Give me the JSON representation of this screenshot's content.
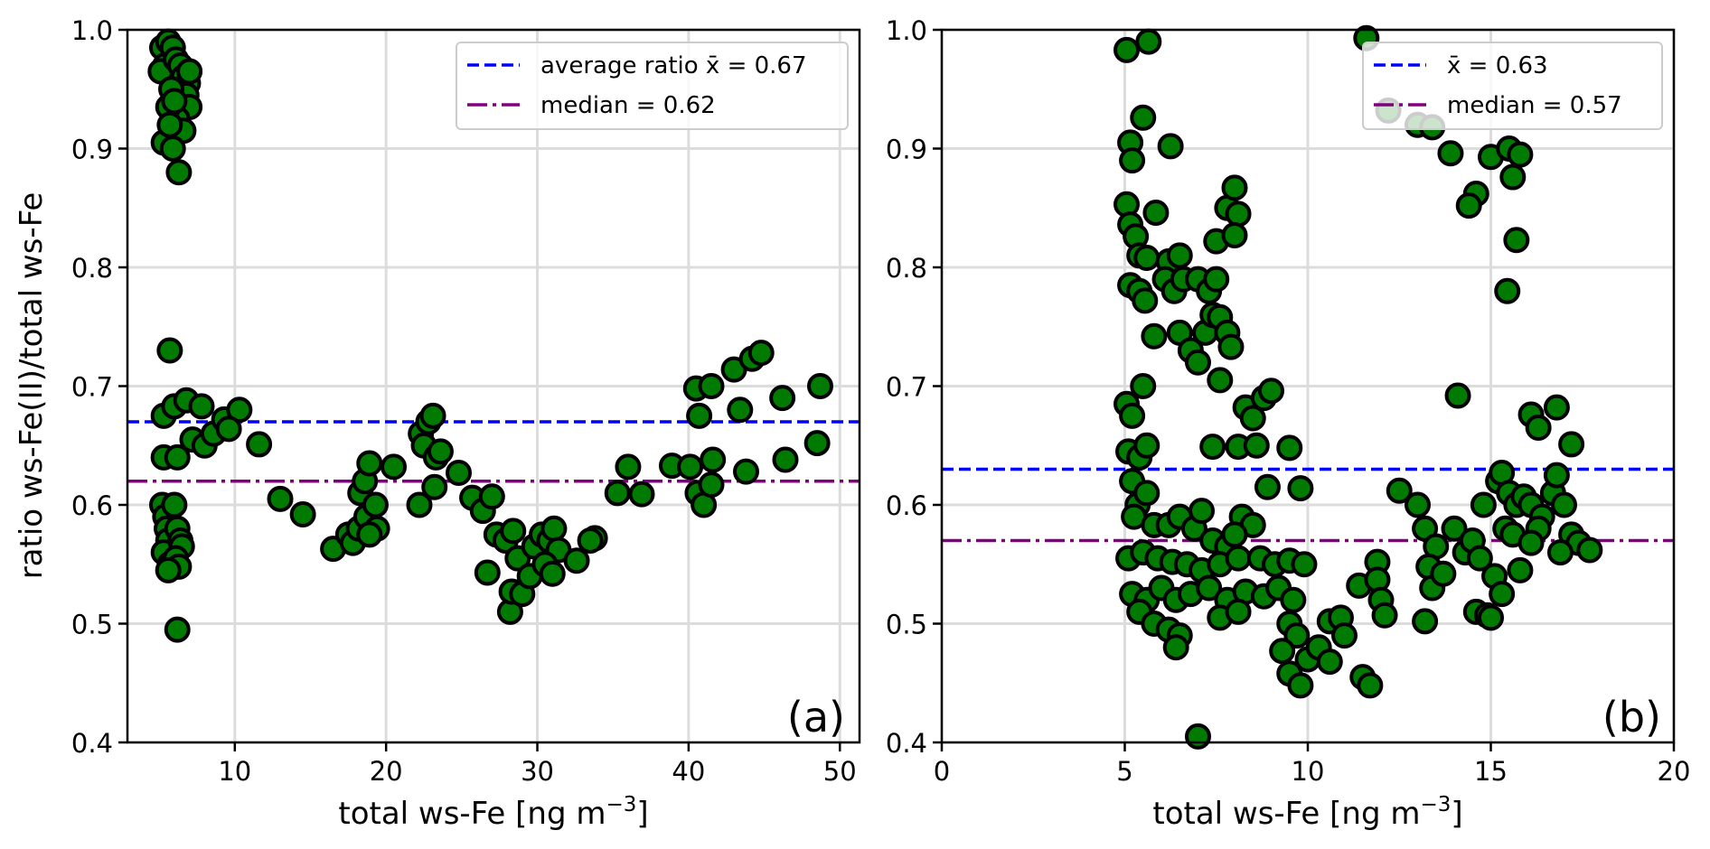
{
  "chart_data": [
    {
      "type": "scatter",
      "panel_tag": "(a)",
      "title": "",
      "xlabel": "total ws-Fe [ng m",
      "xlabel_sup": "−3",
      "xlabel_end": "]",
      "ylabel": "ratio ws-Fe(II)/total ws-Fe",
      "xlim": [
        2.9,
        51.3
      ],
      "ylim": [
        0.4,
        1.0
      ],
      "xticks": [
        10,
        20,
        30,
        40,
        50
      ],
      "xtick_labels": [
        "10",
        "20",
        "30",
        "40",
        "50"
      ],
      "yticks": [
        0.4,
        0.5,
        0.6,
        0.7,
        0.8,
        0.9,
        1.0
      ],
      "ytick_labels": [
        "0.4",
        "0.5",
        "0.6",
        "0.7",
        "0.8",
        "0.9",
        "1.0"
      ],
      "grid": true,
      "marker_color": "#007a00",
      "marker_edge": "#000000",
      "hlines": [
        {
          "name": "mean",
          "value": 0.67,
          "color": "#0000ff",
          "style": "dashed",
          "label": "average ratio x̄ = 0.67"
        },
        {
          "name": "median",
          "value": 0.62,
          "color": "#800080",
          "style": "dashdot",
          "label": "median = 0.62"
        }
      ],
      "legend_position": "top-right",
      "points": [
        [
          5.2,
          0.985
        ],
        [
          5.4,
          0.97
        ],
        [
          5.1,
          0.965
        ],
        [
          5.6,
          0.99
        ],
        [
          5.9,
          0.985
        ],
        [
          6.1,
          0.975
        ],
        [
          6.4,
          0.97
        ],
        [
          6.6,
          0.96
        ],
        [
          6.9,
          0.955
        ],
        [
          7.0,
          0.965
        ],
        [
          6.8,
          0.945
        ],
        [
          6.5,
          0.935
        ],
        [
          7.0,
          0.935
        ],
        [
          6.2,
          0.925
        ],
        [
          6.6,
          0.915
        ],
        [
          5.8,
          0.95
        ],
        [
          5.6,
          0.935
        ],
        [
          5.3,
          0.905
        ],
        [
          5.9,
          0.9
        ],
        [
          6.3,
          0.88
        ],
        [
          5.7,
          0.92
        ],
        [
          6.0,
          0.94
        ],
        [
          5.7,
          0.73
        ],
        [
          5.3,
          0.675
        ],
        [
          6.0,
          0.683
        ],
        [
          6.8,
          0.688
        ],
        [
          7.8,
          0.683
        ],
        [
          5.3,
          0.64
        ],
        [
          6.2,
          0.64
        ],
        [
          7.2,
          0.655
        ],
        [
          8.0,
          0.65
        ],
        [
          8.6,
          0.66
        ],
        [
          9.3,
          0.672
        ],
        [
          10.3,
          0.68
        ],
        [
          9.6,
          0.664
        ],
        [
          11.6,
          0.651
        ],
        [
          5.2,
          0.6
        ],
        [
          5.4,
          0.59
        ],
        [
          5.5,
          0.58
        ],
        [
          5.6,
          0.57
        ],
        [
          5.3,
          0.56
        ],
        [
          5.7,
          0.55
        ],
        [
          6.0,
          0.6
        ],
        [
          6.2,
          0.58
        ],
        [
          6.4,
          0.57
        ],
        [
          6.5,
          0.565
        ],
        [
          6.1,
          0.555
        ],
        [
          6.3,
          0.548
        ],
        [
          5.6,
          0.545
        ],
        [
          6.2,
          0.495
        ],
        [
          13.0,
          0.605
        ],
        [
          14.5,
          0.592
        ],
        [
          16.5,
          0.563
        ],
        [
          17.5,
          0.575
        ],
        [
          17.8,
          0.568
        ],
        [
          18.2,
          0.58
        ],
        [
          18.7,
          0.59
        ],
        [
          18.3,
          0.61
        ],
        [
          18.6,
          0.62
        ],
        [
          18.9,
          0.635
        ],
        [
          19.3,
          0.6
        ],
        [
          19.4,
          0.58
        ],
        [
          18.9,
          0.575
        ],
        [
          20.5,
          0.632
        ],
        [
          22.3,
          0.66
        ],
        [
          22.5,
          0.65
        ],
        [
          22.8,
          0.67
        ],
        [
          23.1,
          0.675
        ],
        [
          23.3,
          0.64
        ],
        [
          23.6,
          0.645
        ],
        [
          22.2,
          0.6
        ],
        [
          23.2,
          0.615
        ],
        [
          24.8,
          0.627
        ],
        [
          25.7,
          0.606
        ],
        [
          26.4,
          0.595
        ],
        [
          27.0,
          0.607
        ],
        [
          27.3,
          0.575
        ],
        [
          26.7,
          0.543
        ],
        [
          27.9,
          0.57
        ],
        [
          28.4,
          0.578
        ],
        [
          28.7,
          0.555
        ],
        [
          28.2,
          0.51
        ],
        [
          28.3,
          0.527
        ],
        [
          29.0,
          0.525
        ],
        [
          29.5,
          0.54
        ],
        [
          29.8,
          0.565
        ],
        [
          30.3,
          0.575
        ],
        [
          30.8,
          0.57
        ],
        [
          31.1,
          0.58
        ],
        [
          31.4,
          0.562
        ],
        [
          30.5,
          0.55
        ],
        [
          31.0,
          0.542
        ],
        [
          32.6,
          0.553
        ],
        [
          33.8,
          0.572
        ],
        [
          33.5,
          0.57
        ],
        [
          35.3,
          0.61
        ],
        [
          36.0,
          0.632
        ],
        [
          36.9,
          0.609
        ],
        [
          38.9,
          0.633
        ],
        [
          40.1,
          0.632
        ],
        [
          40.6,
          0.61
        ],
        [
          41.0,
          0.6
        ],
        [
          41.5,
          0.617
        ],
        [
          41.6,
          0.638
        ],
        [
          43.8,
          0.628
        ],
        [
          46.4,
          0.638
        ],
        [
          48.5,
          0.652
        ],
        [
          40.7,
          0.675
        ],
        [
          43.4,
          0.68
        ],
        [
          46.2,
          0.69
        ],
        [
          40.5,
          0.698
        ],
        [
          41.5,
          0.7
        ],
        [
          48.7,
          0.7
        ],
        [
          43.0,
          0.714
        ],
        [
          44.2,
          0.723
        ],
        [
          44.8,
          0.728
        ]
      ]
    },
    {
      "type": "scatter",
      "panel_tag": "(b)",
      "title": "",
      "xlabel": "total ws-Fe [ng m",
      "xlabel_sup": "−3",
      "xlabel_end": "]",
      "ylabel": "",
      "xlim": [
        0,
        20
      ],
      "ylim": [
        0.4,
        1.0
      ],
      "xticks": [
        0,
        5,
        10,
        15,
        20
      ],
      "xtick_labels": [
        "0",
        "5",
        "10",
        "15",
        "20"
      ],
      "yticks": [
        0.4,
        0.5,
        0.6,
        0.7,
        0.8,
        0.9,
        1.0
      ],
      "ytick_labels": [
        "0.4",
        "0.5",
        "0.6",
        "0.7",
        "0.8",
        "0.9",
        "1.0"
      ],
      "grid": true,
      "marker_color": "#007a00",
      "marker_edge": "#000000",
      "hlines": [
        {
          "name": "mean",
          "value": 0.63,
          "color": "#0000ff",
          "style": "dashed",
          "label": "x̄ = 0.63"
        },
        {
          "name": "median",
          "value": 0.57,
          "color": "#800080",
          "style": "dashdot",
          "label": "median = 0.57"
        }
      ],
      "legend_position": "top-right",
      "points": [
        [
          5.05,
          0.983
        ],
        [
          5.65,
          0.99
        ],
        [
          11.6,
          0.993
        ],
        [
          12.2,
          0.932
        ],
        [
          13.0,
          0.92
        ],
        [
          13.4,
          0.918
        ],
        [
          5.15,
          0.905
        ],
        [
          5.2,
          0.89
        ],
        [
          5.5,
          0.926
        ],
        [
          6.25,
          0.902
        ],
        [
          13.9,
          0.896
        ],
        [
          14.6,
          0.862
        ],
        [
          14.4,
          0.852
        ],
        [
          15.0,
          0.893
        ],
        [
          15.5,
          0.9
        ],
        [
          15.8,
          0.895
        ],
        [
          15.6,
          0.876
        ],
        [
          15.7,
          0.823
        ],
        [
          15.45,
          0.78
        ],
        [
          5.05,
          0.853
        ],
        [
          5.15,
          0.836
        ],
        [
          5.3,
          0.826
        ],
        [
          5.85,
          0.846
        ],
        [
          5.4,
          0.81
        ],
        [
          5.6,
          0.808
        ],
        [
          6.2,
          0.805
        ],
        [
          6.5,
          0.81
        ],
        [
          5.15,
          0.785
        ],
        [
          5.4,
          0.78
        ],
        [
          5.55,
          0.772
        ],
        [
          5.8,
          0.742
        ],
        [
          6.1,
          0.79
        ],
        [
          6.35,
          0.78
        ],
        [
          6.6,
          0.79
        ],
        [
          7.0,
          0.79
        ],
        [
          7.3,
          0.78
        ],
        [
          7.5,
          0.79
        ],
        [
          6.5,
          0.745
        ],
        [
          6.8,
          0.73
        ],
        [
          7.0,
          0.72
        ],
        [
          7.2,
          0.745
        ],
        [
          7.4,
          0.76
        ],
        [
          7.6,
          0.758
        ],
        [
          7.8,
          0.745
        ],
        [
          7.9,
          0.733
        ],
        [
          7.6,
          0.705
        ],
        [
          7.5,
          0.822
        ],
        [
          7.8,
          0.85
        ],
        [
          8.0,
          0.867
        ],
        [
          8.1,
          0.845
        ],
        [
          8.0,
          0.827
        ],
        [
          14.1,
          0.692
        ],
        [
          5.05,
          0.685
        ],
        [
          5.2,
          0.675
        ],
        [
          5.5,
          0.7
        ],
        [
          8.3,
          0.682
        ],
        [
          8.5,
          0.673
        ],
        [
          8.8,
          0.69
        ],
        [
          9.0,
          0.696
        ],
        [
          5.1,
          0.645
        ],
        [
          5.4,
          0.64
        ],
        [
          5.6,
          0.65
        ],
        [
          7.4,
          0.649
        ],
        [
          8.1,
          0.649
        ],
        [
          8.6,
          0.65
        ],
        [
          9.5,
          0.648
        ],
        [
          9.8,
          0.614
        ],
        [
          8.9,
          0.615
        ],
        [
          16.1,
          0.676
        ],
        [
          16.3,
          0.665
        ],
        [
          16.8,
          0.682
        ],
        [
          17.2,
          0.651
        ],
        [
          5.2,
          0.62
        ],
        [
          5.35,
          0.6
        ],
        [
          5.6,
          0.61
        ],
        [
          5.25,
          0.59
        ],
        [
          5.8,
          0.583
        ],
        [
          6.2,
          0.583
        ],
        [
          6.5,
          0.59
        ],
        [
          6.9,
          0.58
        ],
        [
          7.1,
          0.595
        ],
        [
          7.4,
          0.57
        ],
        [
          7.8,
          0.565
        ],
        [
          8.2,
          0.59
        ],
        [
          8.5,
          0.583
        ],
        [
          8.0,
          0.575
        ],
        [
          5.1,
          0.555
        ],
        [
          5.5,
          0.56
        ],
        [
          5.9,
          0.555
        ],
        [
          6.3,
          0.552
        ],
        [
          6.7,
          0.55
        ],
        [
          7.1,
          0.545
        ],
        [
          7.6,
          0.55
        ],
        [
          8.1,
          0.555
        ],
        [
          8.7,
          0.555
        ],
        [
          9.1,
          0.55
        ],
        [
          9.5,
          0.553
        ],
        [
          9.9,
          0.55
        ],
        [
          5.2,
          0.525
        ],
        [
          5.6,
          0.52
        ],
        [
          6.0,
          0.53
        ],
        [
          6.4,
          0.52
        ],
        [
          6.8,
          0.525
        ],
        [
          7.3,
          0.53
        ],
        [
          7.8,
          0.52
        ],
        [
          8.3,
          0.527
        ],
        [
          8.8,
          0.523
        ],
        [
          9.2,
          0.53
        ],
        [
          9.6,
          0.52
        ],
        [
          5.4,
          0.51
        ],
        [
          5.8,
          0.5
        ],
        [
          6.2,
          0.495
        ],
        [
          6.5,
          0.49
        ],
        [
          6.4,
          0.48
        ],
        [
          7.6,
          0.505
        ],
        [
          8.1,
          0.51
        ],
        [
          9.5,
          0.5
        ],
        [
          9.7,
          0.49
        ],
        [
          9.3,
          0.477
        ],
        [
          9.5,
          0.458
        ],
        [
          9.8,
          0.448
        ],
        [
          10.0,
          0.47
        ],
        [
          10.3,
          0.48
        ],
        [
          10.6,
          0.468
        ],
        [
          10.6,
          0.502
        ],
        [
          10.9,
          0.505
        ],
        [
          11.0,
          0.49
        ],
        [
          11.4,
          0.532
        ],
        [
          11.5,
          0.455
        ],
        [
          11.7,
          0.448
        ],
        [
          11.9,
          0.552
        ],
        [
          11.9,
          0.537
        ],
        [
          12.0,
          0.52
        ],
        [
          12.1,
          0.507
        ],
        [
          12.5,
          0.612
        ],
        [
          13.0,
          0.6
        ],
        [
          13.2,
          0.58
        ],
        [
          13.5,
          0.565
        ],
        [
          13.3,
          0.548
        ],
        [
          13.4,
          0.53
        ],
        [
          13.2,
          0.502
        ],
        [
          13.7,
          0.542
        ],
        [
          14.0,
          0.58
        ],
        [
          14.3,
          0.56
        ],
        [
          14.5,
          0.57
        ],
        [
          14.7,
          0.555
        ],
        [
          14.6,
          0.51
        ],
        [
          14.9,
          0.507
        ],
        [
          14.8,
          0.6
        ],
        [
          15.2,
          0.62
        ],
        [
          15.3,
          0.627
        ],
        [
          15.5,
          0.61
        ],
        [
          15.7,
          0.6
        ],
        [
          15.4,
          0.58
        ],
        [
          15.6,
          0.575
        ],
        [
          15.9,
          0.607
        ],
        [
          16.1,
          0.6
        ],
        [
          16.4,
          0.59
        ],
        [
          16.7,
          0.61
        ],
        [
          16.8,
          0.625
        ],
        [
          17.0,
          0.6
        ],
        [
          17.2,
          0.575
        ],
        [
          17.4,
          0.568
        ],
        [
          17.7,
          0.562
        ],
        [
          16.9,
          0.56
        ],
        [
          15.8,
          0.545
        ],
        [
          15.1,
          0.54
        ],
        [
          15.3,
          0.525
        ],
        [
          15.0,
          0.505
        ],
        [
          16.3,
          0.58
        ],
        [
          16.1,
          0.568
        ],
        [
          7.0,
          0.405
        ]
      ]
    }
  ]
}
